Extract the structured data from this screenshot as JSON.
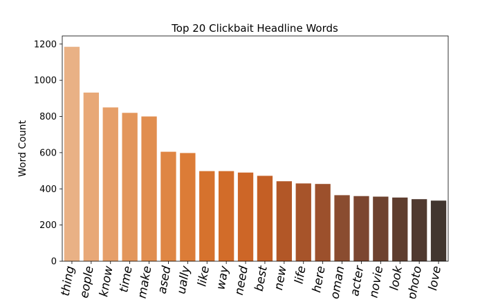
{
  "chart_data": {
    "type": "bar",
    "title": "Top 20 Clickbait Headline Words",
    "xlabel": "",
    "ylabel": "Word Count",
    "ylim": [
      0,
      1245
    ],
    "yticks": [
      0,
      200,
      400,
      600,
      800,
      1000,
      1200
    ],
    "tick_label_rotation": 80,
    "categories": [
      "thing",
      "people",
      "know",
      "time",
      "make",
      "based",
      "actually",
      "like",
      "way",
      "need",
      "best",
      "new",
      "life",
      "here",
      "woman",
      "character",
      "movie",
      "look",
      "photo",
      "love"
    ],
    "tick_labels_visible": [
      "thing",
      "eople",
      "know",
      "time",
      "make",
      "ased",
      "ually",
      "like",
      "way",
      "need",
      "best",
      "new",
      "life",
      "here",
      "oman",
      "acter",
      "novie",
      "look",
      "photo",
      "love"
    ],
    "values": [
      1185,
      932,
      850,
      820,
      800,
      605,
      598,
      498,
      498,
      490,
      472,
      442,
      430,
      427,
      365,
      360,
      357,
      352,
      343,
      335
    ],
    "colors": [
      "#e9b185",
      "#e8a877",
      "#e69f69",
      "#e3965b",
      "#e18e4f",
      "#df8644",
      "#dc7c37",
      "#d6722d",
      "#d26c29",
      "#cd6627",
      "#c45f25",
      "#b25727",
      "#a7542a",
      "#9c502c",
      "#8a4c30",
      "#7c4630",
      "#6e422f",
      "#5f3e2f",
      "#503a30",
      "#41362f"
    ],
    "grid": false,
    "legend": "none"
  }
}
